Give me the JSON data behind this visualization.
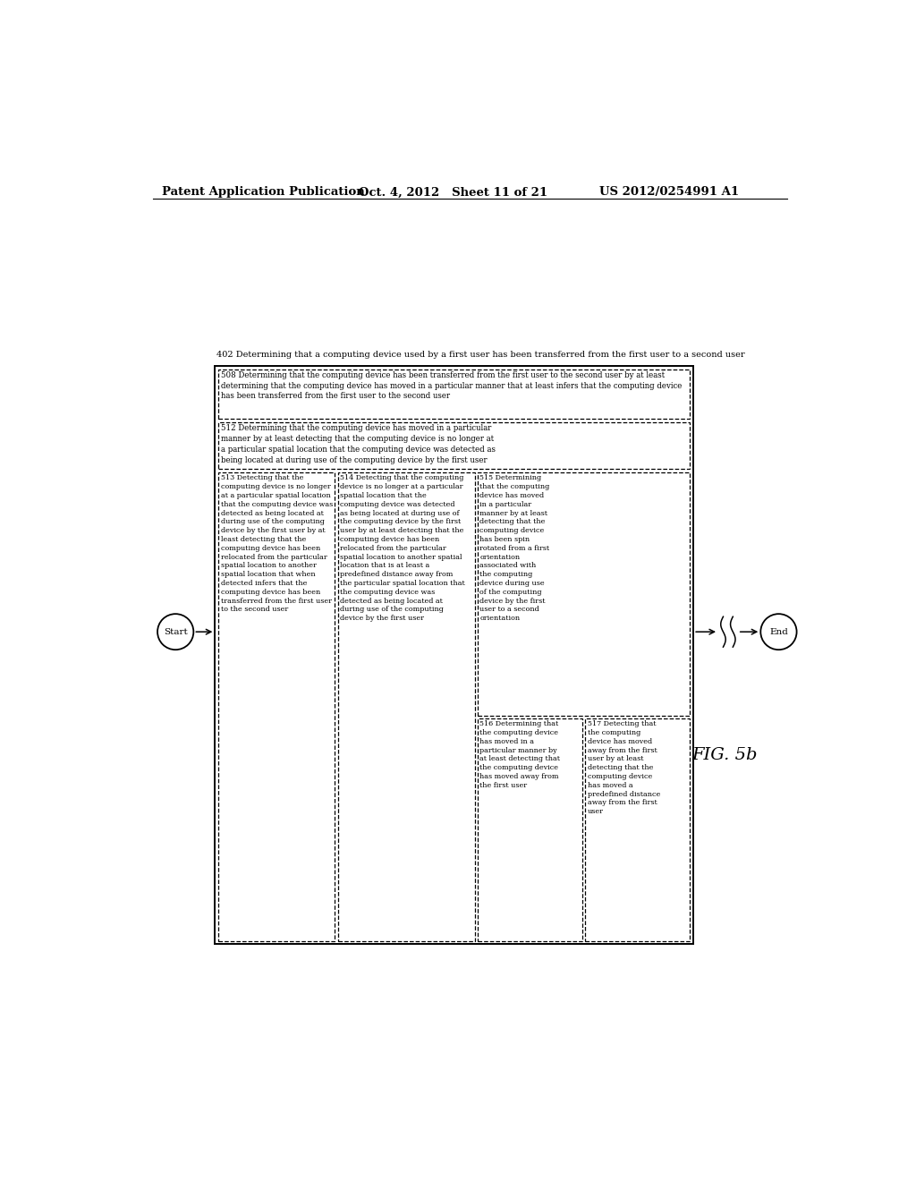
{
  "bg_color": "#ffffff",
  "header_left": "Patent Application Publication",
  "header_mid": "Oct. 4, 2012   Sheet 11 of 21",
  "header_right": "US 2012/0254991 A1",
  "fig_label": "FIG. 5b",
  "top_text_402": "402 Determining that a computing device used by a first user has been transferred from the first user to a second user",
  "box_508_line1": "508 Determining that the computing device has been transferred from the first user to the second user by at least",
  "box_508_line2": "determining that the computing device has moved in a particular manner that at least infers that the computing device",
  "box_508_line3": "has been transferred from the first user to the second user",
  "box_512_line1": "512 Determining that the computing device has moved in a particular",
  "box_512_line2": "manner by at least detecting that the computing device is no longer at",
  "box_512_line3": "a particular spatial location that the computing device was detected as",
  "box_512_line4": "being located at during use of the computing device by the first user",
  "box_513": "513 Detecting that the\ncomputing device is no longer\nat a particular spatial location\nthat the computing device was\ndetected as being located at\nduring use of the computing\ndevice by the first user by at\nleast detecting that the\ncomputing device has been\nrelocated from the particular\nspatial location to another\nspatial location that when\ndetected infers that the\ncomputing device has been\ntransferred from the first user\nto the second user",
  "box_514": "514 Detecting that the computing\ndevice is no longer at a particular\nspatial location that the\ncomputing device was detected\nas being located at during use of\nthe computing device by the first\nuser by at least detecting that the\ncomputing device has been\nrelocated from the particular\nspatial location to another spatial\nlocation that is at least a\npredefined distance away from\nthe particular spatial location that\nthe computing device was\ndetected as being located at\nduring use of the computing\ndevice by the first user",
  "box_515": "515 Determining\nthat the computing\ndevice has moved\nin a particular\nmanner by at least\ndetecting that the\ncomputing device\nhas been spin\nrotated from a first\norientation\nassociated with\nthe computing\ndevice during use\nof the computing\ndevice by the first\nuser to a second\norientation",
  "box_516": "516 Determining that\nthe computing device\nhas moved in a\nparticular manner by\nat least detecting that\nthe computing device\nhas moved away from\nthe first user",
  "box_517": "517 Detecting that\nthe computing\ndevice has moved\naway from the first\nuser by at least\ndetecting that the\ncomputing device\nhas moved a\npredefined distance\naway from the first\nuser"
}
